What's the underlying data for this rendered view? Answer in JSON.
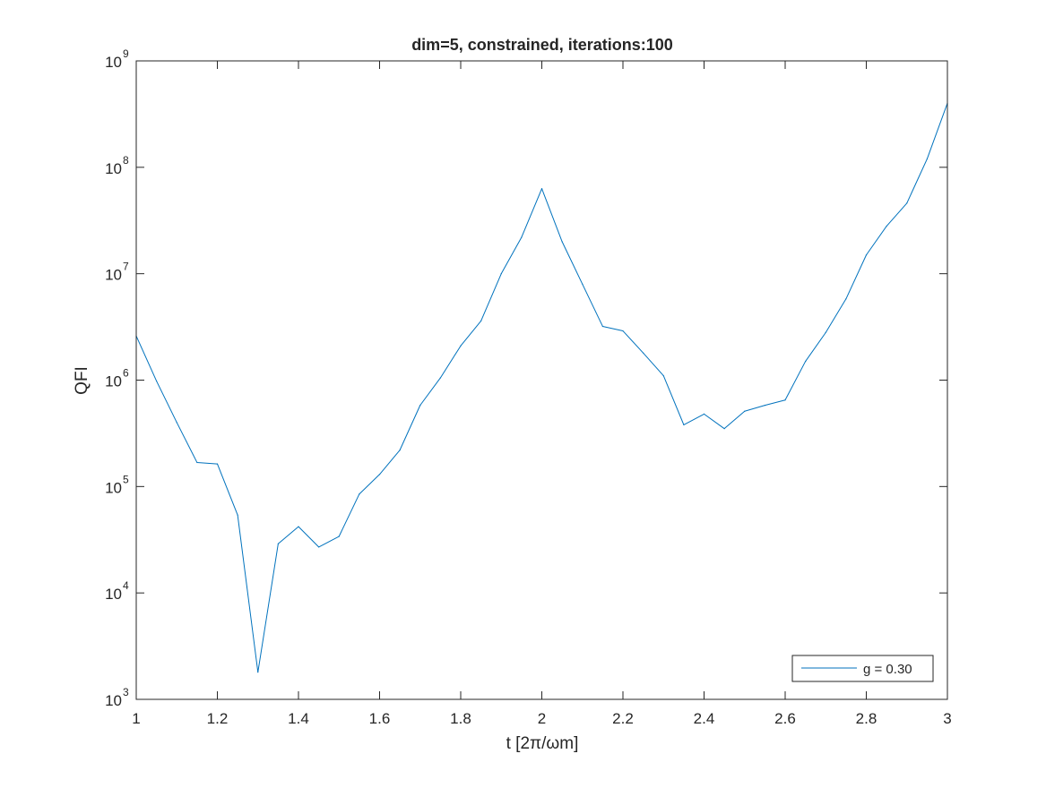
{
  "chart_data": {
    "type": "line",
    "title": "dim=5, constrained, iterations:100",
    "xlabel": "t [2π/ωm]",
    "ylabel": "QFI",
    "xlim": [
      1,
      3
    ],
    "ylim": [
      1000,
      1000000000
    ],
    "yscale": "log",
    "grid": false,
    "legend_position": "bottom-right",
    "x_ticks": [
      {
        "value": 1,
        "label": "1"
      },
      {
        "value": 1.2,
        "label": "1.2"
      },
      {
        "value": 1.4,
        "label": "1.4"
      },
      {
        "value": 1.6,
        "label": "1.6"
      },
      {
        "value": 1.8,
        "label": "1.8"
      },
      {
        "value": 2,
        "label": "2"
      },
      {
        "value": 2.2,
        "label": "2.2"
      },
      {
        "value": 2.4,
        "label": "2.4"
      },
      {
        "value": 2.6,
        "label": "2.6"
      },
      {
        "value": 2.8,
        "label": "2.8"
      },
      {
        "value": 3,
        "label": "3"
      }
    ],
    "y_ticks": [
      {
        "value": 1000,
        "base": "10",
        "exp": "3"
      },
      {
        "value": 10000,
        "base": "10",
        "exp": "4"
      },
      {
        "value": 100000,
        "base": "10",
        "exp": "5"
      },
      {
        "value": 1000000,
        "base": "10",
        "exp": "6"
      },
      {
        "value": 10000000,
        "base": "10",
        "exp": "7"
      },
      {
        "value": 100000000,
        "base": "10",
        "exp": "8"
      },
      {
        "value": 1000000000,
        "base": "10",
        "exp": "9"
      }
    ],
    "series": [
      {
        "name": "g = 0.30",
        "color": "#0072bd",
        "x": [
          1.0,
          1.05,
          1.1,
          1.15,
          1.2,
          1.25,
          1.3,
          1.35,
          1.4,
          1.45,
          1.5,
          1.55,
          1.6,
          1.65,
          1.7,
          1.75,
          1.8,
          1.85,
          1.9,
          1.95,
          2.0,
          2.05,
          2.1,
          2.15,
          2.2,
          2.25,
          2.3,
          2.35,
          2.4,
          2.45,
          2.5,
          2.55,
          2.6,
          2.65,
          2.7,
          2.75,
          2.8,
          2.85,
          2.9,
          2.95,
          3.0
        ],
        "y": [
          2600000,
          980000,
          400000,
          168000,
          163000,
          54000,
          1800,
          29000,
          42000,
          27000,
          34000,
          85000,
          130000,
          220000,
          580000,
          1050000,
          2100000,
          3600000,
          10000000,
          22000000,
          63000000,
          20000000,
          8000000,
          3200000,
          2900000,
          1800000,
          1100000,
          380000,
          480000,
          350000,
          510000,
          580000,
          650000,
          1500000,
          2800000,
          5800000,
          15000000,
          28000000,
          46000000,
          120000000,
          400000000
        ]
      }
    ]
  }
}
